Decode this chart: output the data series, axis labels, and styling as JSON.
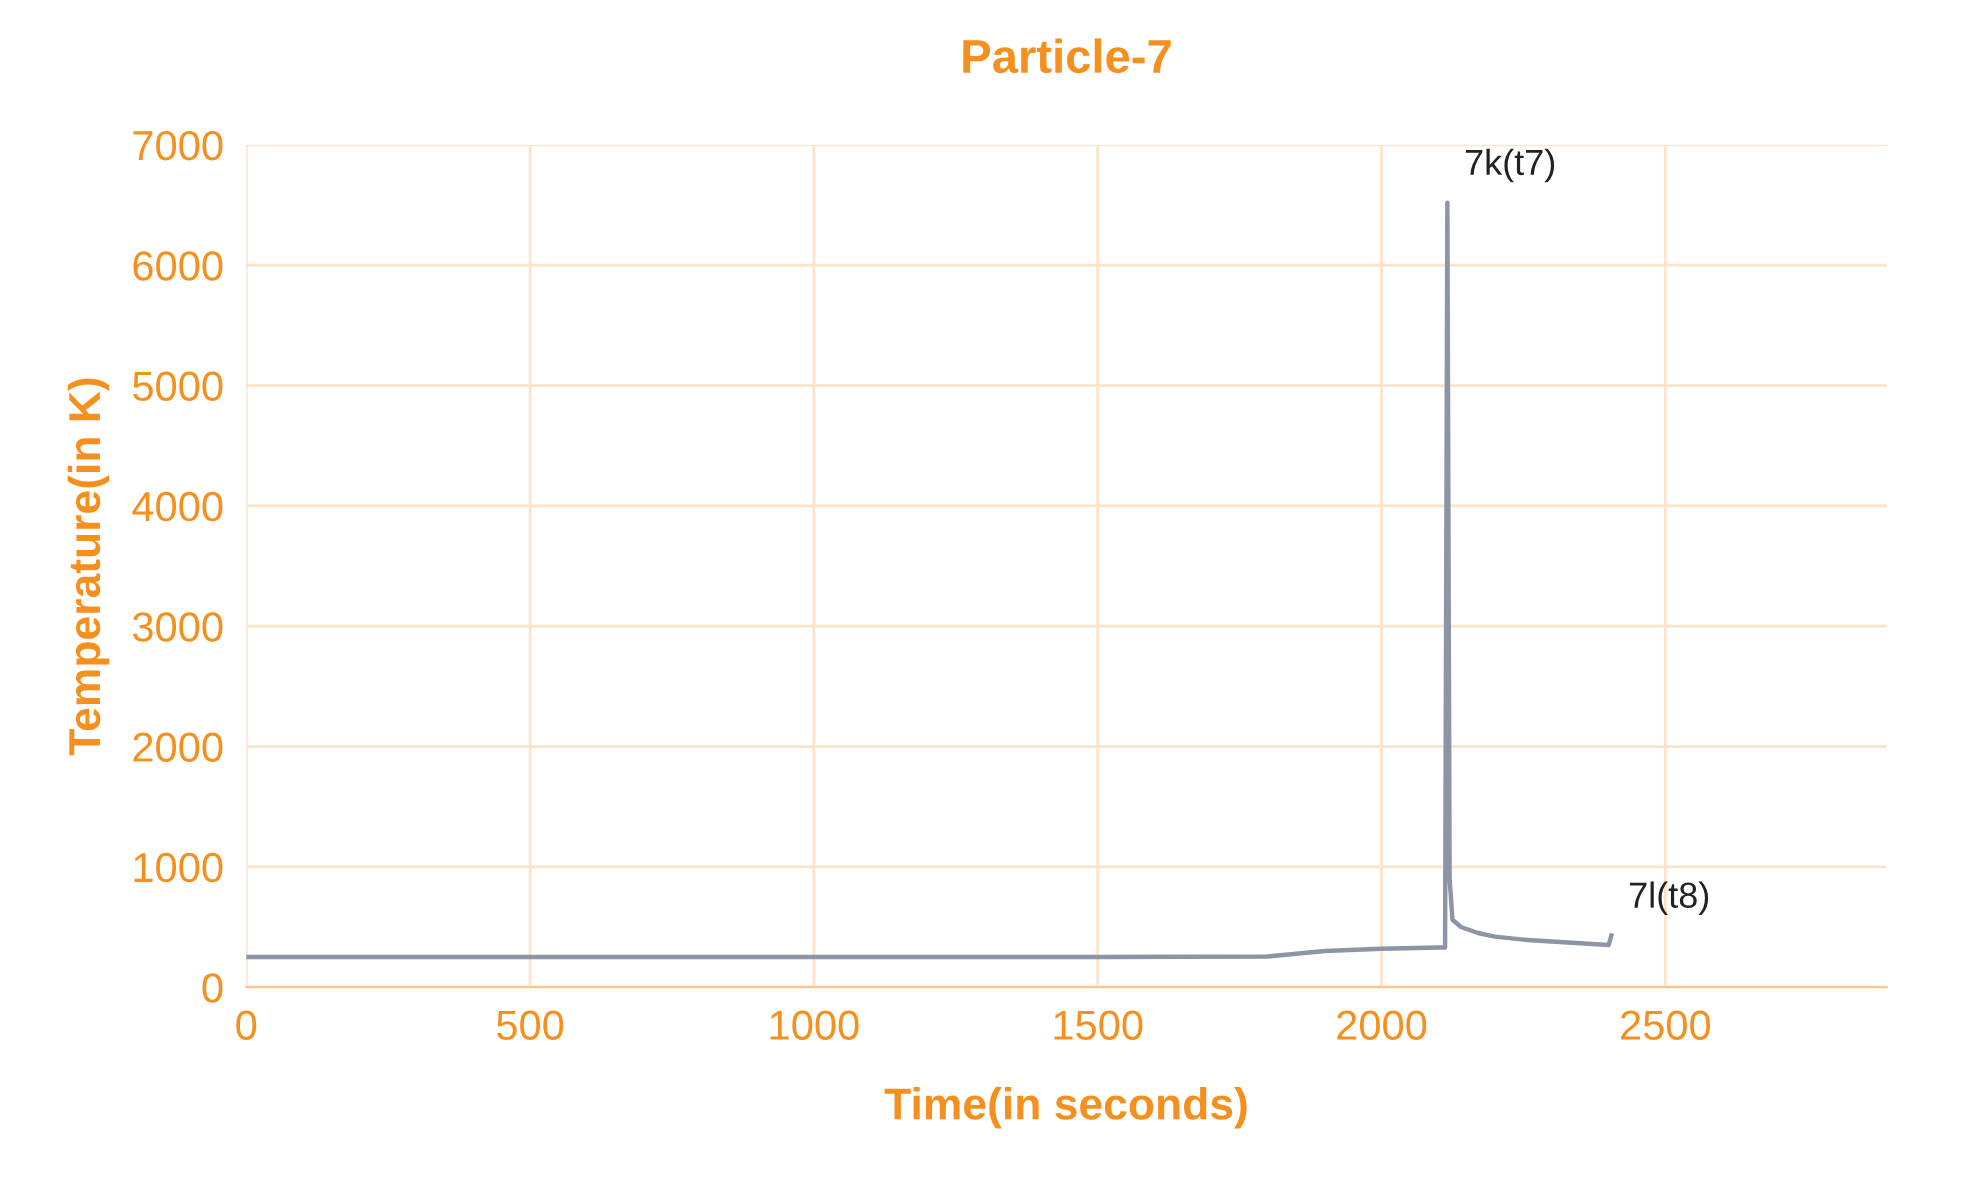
{
  "chart_data": {
    "type": "line",
    "title": "Particle-7",
    "xlabel": "Time(in seconds)",
    "ylabel": "Temperature(in K)",
    "x": [
      0,
      500,
      1000,
      1500,
      1800,
      1900,
      2000,
      2100,
      2112,
      2116,
      2120,
      2125,
      2140,
      2170,
      2200,
      2250,
      2300,
      2350,
      2400,
      2405
    ],
    "series": [
      {
        "color": "#8c95a5",
        "values": [
          250,
          250,
          250,
          250,
          255,
          300,
          320,
          330,
          330,
          6520,
          900,
          560,
          500,
          450,
          420,
          395,
          380,
          365,
          350,
          430
        ]
      }
    ],
    "xlim": [
      0,
      2890
    ],
    "xticks": [
      0,
      500,
      1000,
      1500,
      2000,
      2500
    ],
    "ylim": [
      0,
      7000
    ],
    "yticks": [
      0,
      1000,
      2000,
      3000,
      4000,
      5000,
      6000,
      7000
    ],
    "grid": true,
    "line_style": "solid",
    "marker": "none",
    "annotations": [
      {
        "text": "7k(t7)",
        "x": 2116,
        "y": 6520
      },
      {
        "text": "7l(t8)",
        "x": 2405,
        "y": 430
      }
    ]
  }
}
